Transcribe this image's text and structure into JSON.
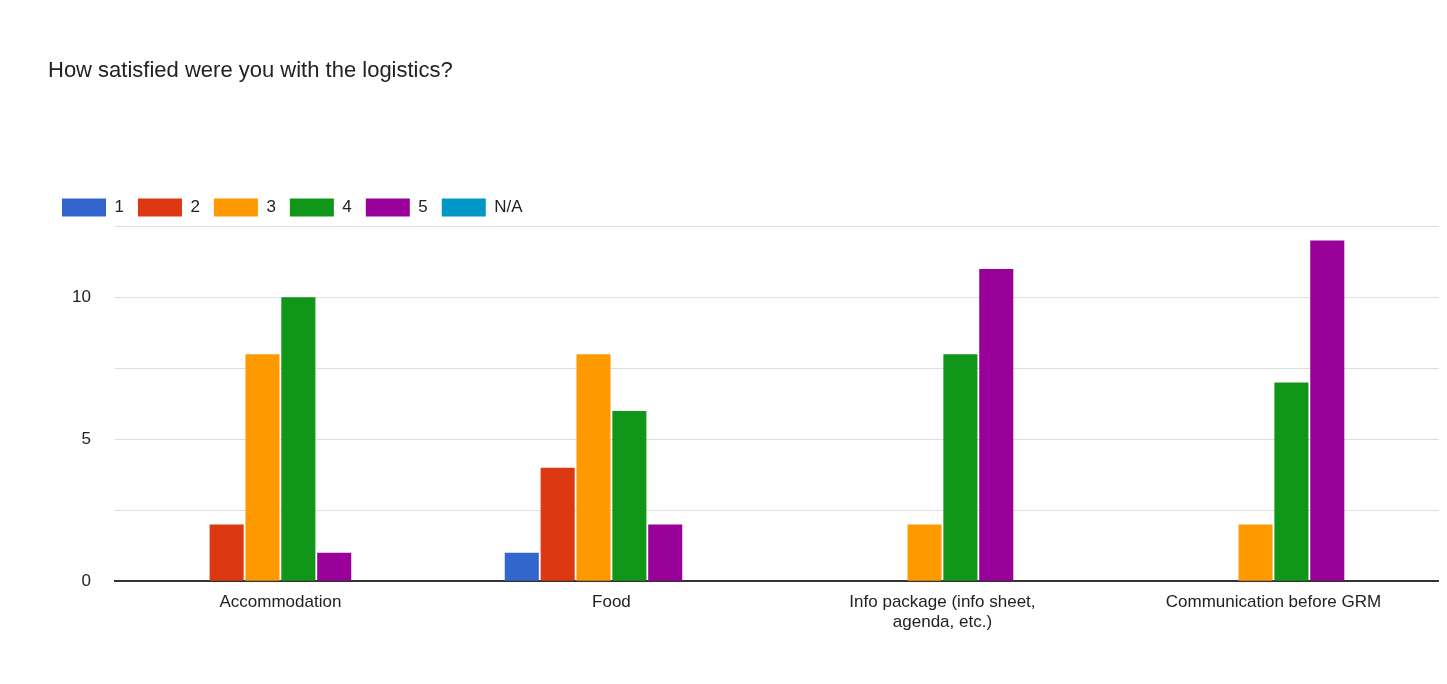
{
  "chart_data": {
    "type": "bar",
    "title": "How satisfied were you with the logistics?",
    "categories": [
      "Accommodation",
      "Food",
      "Info package (info sheet, agenda, etc.)",
      "Communication before GRM"
    ],
    "series": [
      {
        "name": "1",
        "color": "#3366cc",
        "values": [
          0,
          1,
          0,
          0
        ]
      },
      {
        "name": "2",
        "color": "#dc3912",
        "values": [
          2,
          4,
          0,
          0
        ]
      },
      {
        "name": "3",
        "color": "#ff9900",
        "values": [
          8,
          8,
          2,
          2
        ]
      },
      {
        "name": "4",
        "color": "#109618",
        "values": [
          10,
          6,
          8,
          7
        ]
      },
      {
        "name": "5",
        "color": "#990099",
        "values": [
          1,
          2,
          11,
          12
        ]
      },
      {
        "name": "N/A",
        "color": "#0099c6",
        "values": [
          0,
          0,
          0,
          0
        ]
      }
    ],
    "ylim": [
      0,
      12.5
    ],
    "yticks": [
      0,
      {
        "value": 2.5,
        "label": null
      },
      5,
      {
        "value": 7.5,
        "label": null
      },
      10,
      {
        "value": 12.5,
        "label": null
      }
    ],
    "grid": "y",
    "legend": "top left"
  }
}
